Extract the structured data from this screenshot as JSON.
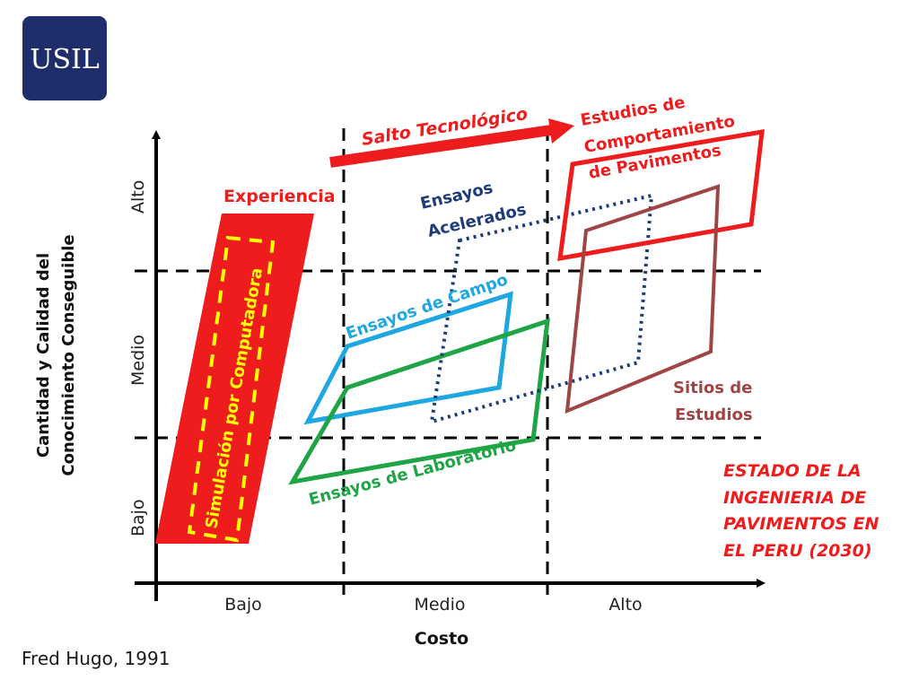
{
  "logo": {
    "text": "USIL"
  },
  "axes": {
    "y_title_line1": "Cantidad y Calidad del",
    "y_title_line2": "Conocimiento Conseguible",
    "x_title": "Costo",
    "y_levels": [
      "Bajo",
      "Medio",
      "Alto"
    ],
    "x_levels": [
      "Bajo",
      "Medio",
      "Alto"
    ]
  },
  "regions": {
    "experiencia": "Experiencia",
    "simulacion": "Simulación por Computadora",
    "ensayos_campo": "Ensayos de Campo",
    "ensayos_laboratorio": "Ensayos de Laboratorio",
    "ensayos_acelerados_line1": "Ensayos",
    "ensayos_acelerados_line2": "Acelerados",
    "estudios_line1": "Estudios de",
    "estudios_line2": "Comportamiento",
    "estudios_line3": "de Pavimentos",
    "sitios_line1": "Sitios de",
    "sitios_line2": "Estudios"
  },
  "arrow": {
    "label": "Salto Tecnológico"
  },
  "caption": {
    "line1": "ESTADO DE LA",
    "line2": "INGENIERIA DE",
    "line3": "PAVIMENTOS EN",
    "line4": "EL PERU (2030)"
  },
  "credit": "Fred Hugo, 1991",
  "colors": {
    "red": "#ee1c1c",
    "blue": "#1ea7e1",
    "green": "#1fa546",
    "navy": "#1f3c7a",
    "brown": "#a04545",
    "yellow": "#ffff00",
    "logo_bg": "#1f2d6b"
  }
}
